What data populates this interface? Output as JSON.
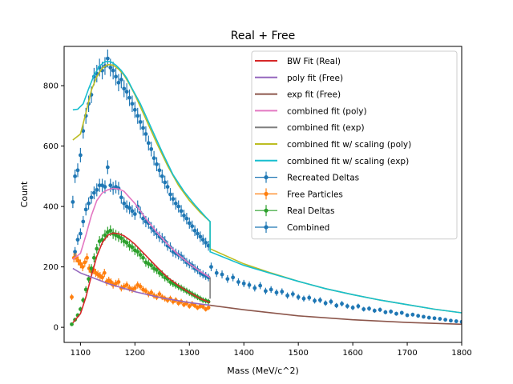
{
  "chart_data": {
    "type": "scatter",
    "title": "Real + Free",
    "xlabel": "Mass (MeV/c^2)",
    "ylabel": "Count",
    "xlim": [
      1070,
      1800
    ],
    "ylim": [
      -50,
      930
    ],
    "xticks": [
      1100,
      1200,
      1300,
      1400,
      1500,
      1600,
      1700,
      1800
    ],
    "yticks": [
      0,
      200,
      400,
      600,
      800
    ],
    "grid": false,
    "legend_position": "top-right",
    "lines": [
      {
        "name": "BW Fit (Real)",
        "color": "#d62728",
        "x": [
          1086,
          1100,
          1110,
          1120,
          1130,
          1140,
          1150,
          1160,
          1170,
          1180,
          1190,
          1200,
          1220,
          1240,
          1260,
          1280,
          1300,
          1320,
          1338
        ],
        "y": [
          15,
          45,
          100,
          170,
          235,
          280,
          305,
          312,
          310,
          303,
          290,
          275,
          238,
          200,
          165,
          138,
          115,
          95,
          82
        ]
      },
      {
        "name": "poly fit (Free)",
        "color": "#9467bd",
        "x": [
          1086,
          1100,
          1150,
          1200,
          1250,
          1300,
          1338
        ],
        "y": [
          195,
          180,
          145,
          118,
          97,
          82,
          73
        ]
      },
      {
        "name": "exp fit (Free)",
        "color": "#8c564b",
        "x": [
          1338,
          1400,
          1500,
          1600,
          1700,
          1800
        ],
        "y": [
          73,
          58,
          38,
          25,
          16,
          10
        ]
      },
      {
        "name": "combined fit (poly)",
        "color": "#e377c2",
        "x": [
          1086,
          1100,
          1110,
          1120,
          1130,
          1140,
          1150,
          1160,
          1170,
          1180,
          1190,
          1200,
          1220,
          1240,
          1260,
          1280,
          1300,
          1320,
          1338
        ],
        "y": [
          225,
          245,
          305,
          370,
          420,
          445,
          455,
          460,
          458,
          450,
          430,
          410,
          360,
          315,
          275,
          240,
          210,
          185,
          165
        ]
      },
      {
        "name": "combined fit (exp)",
        "color": "#7f7f7f",
        "x": [
          1338,
          1338
        ],
        "y": [
          165,
          95
        ]
      },
      {
        "name": "combined fit w/ scaling (poly)",
        "color": "#bcbd22",
        "x": [
          1086,
          1100,
          1110,
          1120,
          1130,
          1140,
          1150,
          1160,
          1170,
          1180,
          1190,
          1200,
          1220,
          1240,
          1260,
          1280,
          1300,
          1320,
          1338,
          1338,
          1400,
          1450,
          1500,
          1550,
          1600,
          1650,
          1700,
          1750,
          1800
        ],
        "y": [
          620,
          640,
          710,
          785,
          830,
          858,
          870,
          868,
          855,
          835,
          805,
          770,
          690,
          610,
          535,
          470,
          420,
          380,
          350,
          260,
          210,
          180,
          152,
          128,
          108,
          90,
          75,
          60,
          48
        ]
      },
      {
        "name": "combined fit w/ scaling (exp)",
        "color": "#17becf",
        "x": [
          1086,
          1095,
          1105,
          1115,
          1125,
          1135,
          1145,
          1155,
          1165,
          1175,
          1185,
          1195,
          1210,
          1230,
          1250,
          1270,
          1290,
          1310,
          1330,
          1338,
          1338,
          1400,
          1450,
          1500,
          1550,
          1600,
          1650,
          1700,
          1750,
          1800
        ],
        "y": [
          720,
          722,
          740,
          790,
          835,
          865,
          880,
          880,
          868,
          850,
          825,
          790,
          740,
          660,
          580,
          505,
          450,
          405,
          365,
          350,
          250,
          205,
          178,
          152,
          128,
          108,
          90,
          75,
          60,
          48
        ]
      }
    ],
    "series": [
      {
        "name": "Recreated Deltas",
        "color": "#1f77b4",
        "x": [
          1090,
          1095,
          1100,
          1105,
          1110,
          1115,
          1120,
          1125,
          1130,
          1135,
          1140,
          1145,
          1150,
          1155,
          1160,
          1165,
          1170,
          1175,
          1180,
          1185,
          1190,
          1195,
          1200,
          1205,
          1210,
          1215,
          1220,
          1225,
          1230,
          1235,
          1240,
          1245,
          1250,
          1255,
          1260,
          1265,
          1270,
          1275,
          1280,
          1285,
          1290,
          1295,
          1300,
          1305,
          1310,
          1315,
          1320,
          1325,
          1330,
          1335
        ],
        "y": [
          250,
          290,
          310,
          350,
          390,
          410,
          430,
          445,
          455,
          470,
          470,
          465,
          530,
          470,
          460,
          465,
          460,
          430,
          410,
          400,
          395,
          385,
          375,
          400,
          380,
          360,
          350,
          345,
          330,
          320,
          310,
          300,
          295,
          285,
          270,
          265,
          250,
          245,
          240,
          235,
          225,
          215,
          210,
          205,
          195,
          190,
          180,
          175,
          170,
          165
        ]
      },
      {
        "name": "Free Particles",
        "color": "#ff7f0e",
        "x": [
          1084,
          1088,
          1092,
          1096,
          1100,
          1104,
          1108,
          1112,
          1116,
          1120,
          1124,
          1128,
          1132,
          1136,
          1140,
          1144,
          1148,
          1152,
          1156,
          1160,
          1165,
          1170,
          1175,
          1180,
          1185,
          1190,
          1195,
          1200,
          1205,
          1210,
          1215,
          1220,
          1225,
          1230,
          1235,
          1240,
          1245,
          1250,
          1255,
          1260,
          1265,
          1270,
          1275,
          1280,
          1285,
          1290,
          1295,
          1300,
          1305,
          1310,
          1315,
          1320,
          1325,
          1330,
          1335
        ],
        "y": [
          100,
          230,
          230,
          220,
          210,
          200,
          215,
          230,
          195,
          185,
          190,
          180,
          175,
          170,
          165,
          180,
          150,
          155,
          150,
          140,
          145,
          150,
          130,
          135,
          140,
          130,
          125,
          130,
          140,
          135,
          125,
          120,
          110,
          115,
          105,
          100,
          110,
          100,
          95,
          90,
          95,
          85,
          90,
          80,
          85,
          75,
          80,
          70,
          78,
          72,
          65,
          70,
          68,
          60,
          65
        ]
      },
      {
        "name": "Real Deltas",
        "color": "#2ca02c",
        "x": [
          1084,
          1090,
          1095,
          1100,
          1105,
          1110,
          1115,
          1120,
          1125,
          1130,
          1135,
          1140,
          1145,
          1150,
          1155,
          1160,
          1165,
          1170,
          1175,
          1180,
          1185,
          1190,
          1195,
          1200,
          1205,
          1210,
          1215,
          1220,
          1225,
          1230,
          1235,
          1240,
          1245,
          1250,
          1255,
          1260,
          1265,
          1270,
          1275,
          1280,
          1285,
          1290,
          1295,
          1300,
          1305,
          1310,
          1315,
          1320,
          1325,
          1330,
          1335
        ],
        "y": [
          10,
          25,
          40,
          60,
          90,
          125,
          160,
          195,
          230,
          260,
          285,
          290,
          305,
          315,
          320,
          310,
          305,
          300,
          295,
          285,
          280,
          270,
          265,
          255,
          250,
          240,
          230,
          215,
          210,
          205,
          195,
          190,
          180,
          175,
          165,
          160,
          150,
          145,
          140,
          135,
          130,
          125,
          120,
          115,
          110,
          105,
          100,
          95,
          90,
          88,
          85
        ]
      },
      {
        "name": "Combined",
        "color": "#1f77b4",
        "x": [
          1086,
          1090,
          1095,
          1100,
          1105,
          1110,
          1115,
          1120,
          1125,
          1130,
          1135,
          1140,
          1145,
          1150,
          1155,
          1160,
          1165,
          1170,
          1175,
          1180,
          1185,
          1190,
          1195,
          1200,
          1205,
          1210,
          1215,
          1220,
          1225,
          1230,
          1235,
          1240,
          1245,
          1250,
          1255,
          1260,
          1265,
          1270,
          1275,
          1280,
          1285,
          1290,
          1295,
          1300,
          1305,
          1310,
          1315,
          1320,
          1325,
          1330,
          1335,
          1340,
          1350,
          1360,
          1370,
          1380,
          1390,
          1400,
          1410,
          1420,
          1430,
          1440,
          1450,
          1460,
          1470,
          1480,
          1490,
          1500,
          1510,
          1520,
          1530,
          1540,
          1550,
          1560,
          1570,
          1580,
          1590,
          1600,
          1610,
          1620,
          1630,
          1640,
          1650,
          1660,
          1670,
          1680,
          1690,
          1700,
          1710,
          1720,
          1730,
          1740,
          1750,
          1760,
          1770,
          1780,
          1790,
          1800
        ],
        "y": [
          415,
          500,
          520,
          570,
          650,
          700,
          740,
          770,
          830,
          840,
          860,
          850,
          865,
          890,
          860,
          850,
          830,
          810,
          820,
          790,
          780,
          760,
          740,
          720,
          700,
          680,
          660,
          640,
          610,
          590,
          560,
          540,
          520,
          500,
          480,
          465,
          440,
          425,
          410,
          400,
          385,
          370,
          360,
          345,
          335,
          320,
          310,
          300,
          290,
          280,
          270,
          200,
          180,
          175,
          160,
          165,
          150,
          145,
          140,
          130,
          138,
          120,
          125,
          115,
          118,
          105,
          110,
          100,
          95,
          98,
          88,
          90,
          80,
          85,
          72,
          78,
          70,
          65,
          70,
          60,
          62,
          55,
          58,
          50,
          52,
          45,
          48,
          40,
          42,
          38,
          35,
          32,
          30,
          28,
          25,
          22,
          20,
          18
        ]
      }
    ]
  }
}
